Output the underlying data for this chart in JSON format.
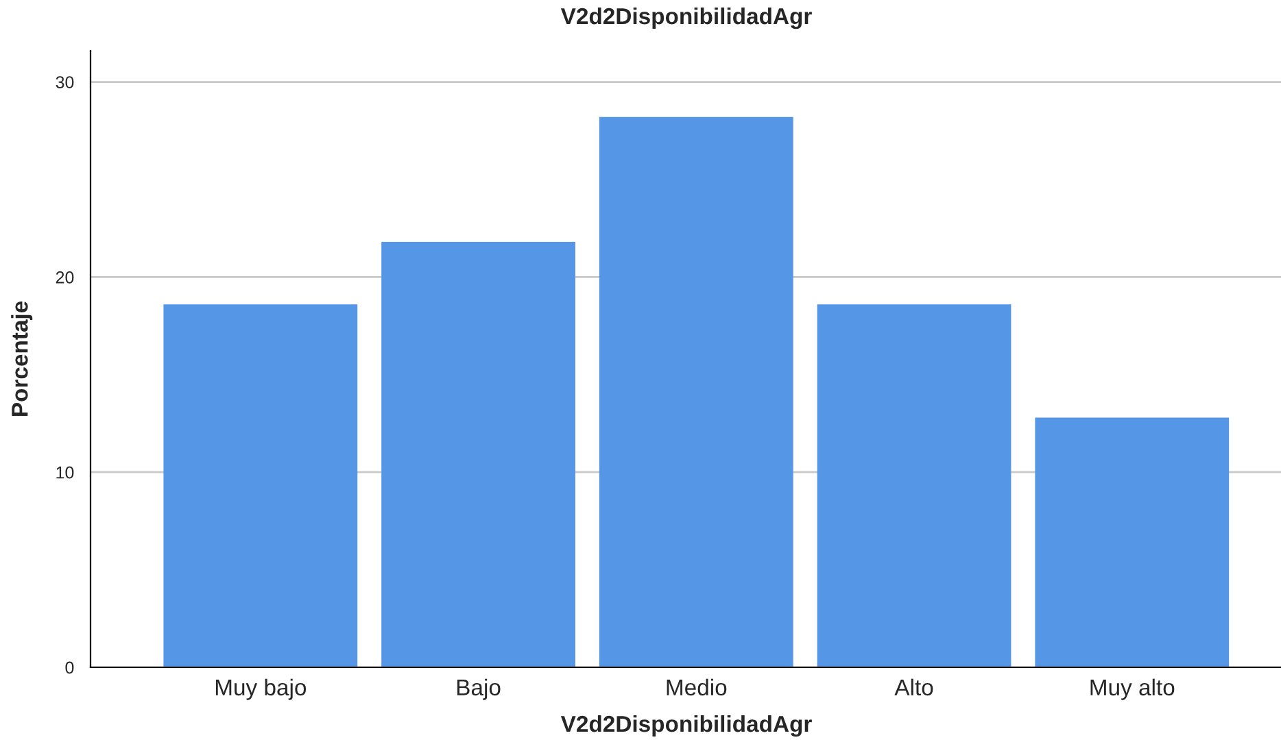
{
  "chart_data": {
    "type": "bar",
    "title": "V2d2DisponibilidadAgr",
    "xlabel": "V2d2DisponibilidadAgr",
    "ylabel": "Porcentaje",
    "categories": [
      "Muy bajo",
      "Bajo",
      "Medio",
      "Alto",
      "Muy alto"
    ],
    "values": [
      18.6,
      21.8,
      28.2,
      18.6,
      12.8
    ],
    "color": "#5596e6",
    "ylim": [
      0,
      31.6
    ],
    "yticks": [
      0,
      10,
      20,
      30
    ],
    "grid": "y",
    "legend": false
  }
}
